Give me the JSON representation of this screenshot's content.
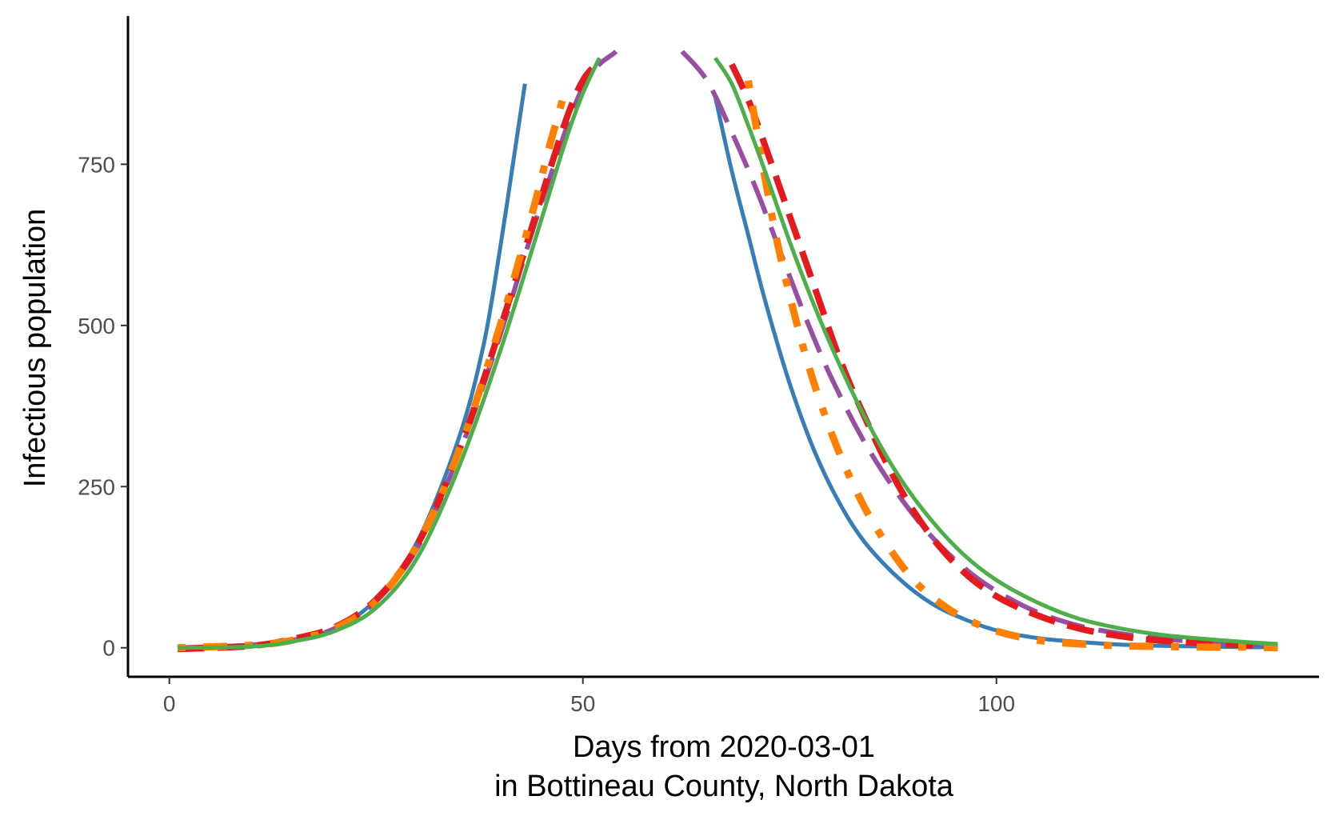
{
  "chart_data": {
    "type": "line",
    "title": "",
    "xlabel_line1": "Days from 2020-03-01",
    "xlabel_line2": "in Bottineau County, North Dakota",
    "ylabel": "Infectious population",
    "xlim": [
      -5,
      139
    ],
    "ylim": [
      -45,
      980
    ],
    "x_ticks": [
      0,
      50,
      100
    ],
    "y_ticks": [
      0,
      250,
      500,
      750
    ],
    "grid": false,
    "legend": "none",
    "series": [
      {
        "color": "#377eb8",
        "dash": "solid",
        "width": 5,
        "segments": [
          {
            "x": [
              1,
              10,
              15,
              20,
              25,
              30,
              35,
              38,
              40,
              42,
              43
            ],
            "y": [
              0,
              5,
              12,
              30,
              75,
              165,
              325,
              470,
              620,
              790,
              875
            ]
          },
          {
            "x": [
              66,
              68,
              70,
              72,
              75,
              78,
              81,
              84,
              88,
              92,
              96,
              100,
              105,
              110,
              115,
              120,
              125,
              130,
              134
            ],
            "y": [
              855,
              740,
              640,
              540,
              410,
              305,
              225,
              165,
              110,
              70,
              45,
              27,
              15,
              9,
              5,
              3,
              2,
              1,
              1
            ]
          }
        ]
      },
      {
        "color": "#984ea3",
        "dash": "longdash",
        "width": 6,
        "segments": [
          {
            "x": [
              1,
              10,
              15,
              20,
              25,
              30,
              35,
              40,
              45,
              50,
              54
            ],
            "y": [
              0,
              4,
              12,
              30,
              72,
              155,
              300,
              485,
              690,
              870,
              925
            ]
          },
          {
            "x": [
              62,
              65,
              68,
              71,
              74,
              77,
              80,
              84,
              88,
              92,
              96,
              100,
              105,
              110,
              115,
              120,
              125,
              130,
              134
            ],
            "y": [
              925,
              880,
              800,
              710,
              610,
              510,
              420,
              320,
              240,
              175,
              125,
              88,
              55,
              34,
              22,
              14,
              9,
              6,
              4
            ]
          }
        ]
      },
      {
        "color": "#e41a1c",
        "dash": "dashed",
        "width": 8,
        "segments": [
          {
            "x": [
              1,
              10,
              15,
              20,
              25,
              30,
              35,
              40,
              45,
              48,
              50,
              52
            ],
            "y": [
              -2,
              3,
              14,
              32,
              75,
              160,
              305,
              495,
              700,
              820,
              880,
              910
            ]
          },
          {
            "x": [
              68,
              70,
              72,
              75,
              78,
              81,
              84,
              88,
              92,
              96,
              100,
              105,
              110,
              115,
              120,
              125,
              130,
              134
            ],
            "y": [
              905,
              850,
              780,
              670,
              560,
              450,
              360,
              255,
              175,
              118,
              80,
              50,
              30,
              18,
              11,
              7,
              4,
              3
            ]
          }
        ]
      },
      {
        "color": "#ff7f00",
        "dash": "dotdash",
        "width": 9,
        "segments": [
          {
            "x": [
              1,
              10,
              15,
              20,
              25,
              30,
              35,
              40,
              44,
              46,
              48
            ],
            "y": [
              0,
              4,
              12,
              30,
              72,
              160,
              305,
              500,
              680,
              780,
              870
            ]
          },
          {
            "x": [
              70,
              72,
              74,
              77,
              80,
              83,
              86,
              90,
              94,
              98,
              102,
              106,
              110,
              115,
              120,
              125,
              130,
              134
            ],
            "y": [
              880,
              730,
              600,
              450,
              335,
              245,
              175,
              105,
              62,
              35,
              19,
              10,
              6,
              3,
              2,
              1,
              1,
              0
            ]
          }
        ]
      },
      {
        "color": "#4daf4a",
        "dash": "solid",
        "width": 5,
        "segments": [
          {
            "x": [
              1,
              10,
              15,
              20,
              25,
              30,
              35,
              40,
              45,
              48,
              50,
              52
            ],
            "y": [
              0,
              2,
              10,
              26,
              62,
              140,
              280,
              460,
              665,
              790,
              860,
              915
            ]
          },
          {
            "x": [
              66,
              68,
              70,
              72,
              75,
              78,
              81,
              84,
              88,
              92,
              96,
              100,
              105,
              110,
              115,
              120,
              125,
              130,
              134
            ],
            "y": [
              915,
              875,
              810,
              740,
              630,
              530,
              440,
              360,
              270,
              200,
              145,
              105,
              70,
              45,
              30,
              20,
              14,
              9,
              6
            ]
          }
        ]
      }
    ]
  }
}
